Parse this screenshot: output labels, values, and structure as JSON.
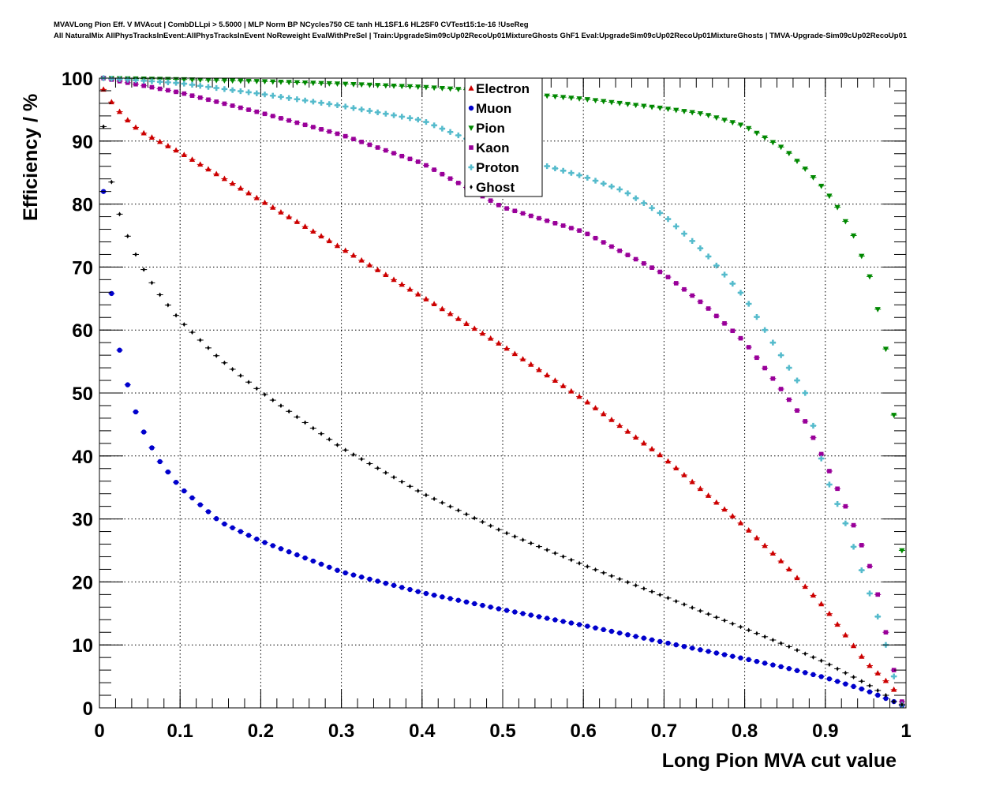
{
  "header": {
    "line1": "MVAVLong Pion Eff. V MVAcut | CombDLLpi > 5.5000 | MLP Norm BP NCycles750 CE tanh HL1SF1.6 HL2SF0 CVTest15:1e-16 !UseReg",
    "line2": "All NaturalMix AllPhysTracksInEvent:AllPhysTracksInEvent NoReweight EvalWithPreSel | Train:UpgradeSim09cUp02RecoUp01MixtureGhosts GhF1 Eval:UpgradeSim09cUp02RecoUp01MixtureGhosts | TMVA-Upgrade-Sim09cUp02RecoUp01"
  },
  "chart_data": {
    "type": "scatter",
    "title": "",
    "xlabel": "Long Pion MVA cut value",
    "ylabel": "Efficiency / %",
    "xlim": [
      0,
      1
    ],
    "ylim": [
      0,
      100
    ],
    "x_ticks": [
      "0",
      "0.1",
      "0.2",
      "0.3",
      "0.4",
      "0.5",
      "0.6",
      "0.7",
      "0.8",
      "0.9",
      "1"
    ],
    "y_ticks": [
      "0",
      "10",
      "20",
      "30",
      "40",
      "50",
      "60",
      "70",
      "80",
      "90",
      "100"
    ],
    "grid": true,
    "legend_position": "top-center",
    "x_sampling": {
      "start": 0.005,
      "step": 0.01,
      "count": 100
    },
    "series": [
      {
        "name": "Electron",
        "color": "#cc0000",
        "marker": "triangle-up",
        "knots": [
          [
            0.005,
            98.2
          ],
          [
            0.015,
            96.2
          ],
          [
            0.03,
            93.9
          ],
          [
            0.05,
            91.6
          ],
          [
            0.1,
            88.2
          ],
          [
            0.2,
            80.6
          ],
          [
            0.3,
            73
          ],
          [
            0.4,
            65.3
          ],
          [
            0.5,
            57.5
          ],
          [
            0.6,
            49
          ],
          [
            0.7,
            39.7
          ],
          [
            0.8,
            28.8
          ],
          [
            0.85,
            22.7
          ],
          [
            0.9,
            15.8
          ],
          [
            0.95,
            7.3
          ],
          [
            0.975,
            4.3
          ],
          [
            0.985,
            2.9
          ],
          [
            0.995,
            0.6
          ]
        ]
      },
      {
        "name": "Muon",
        "color": "#0000cc",
        "marker": "circle",
        "knots": [
          [
            0.005,
            82
          ],
          [
            0.015,
            65.8
          ],
          [
            0.025,
            56.8
          ],
          [
            0.035,
            51.3
          ],
          [
            0.045,
            47
          ],
          [
            0.055,
            43.8
          ],
          [
            0.065,
            41.3
          ],
          [
            0.075,
            39.1
          ],
          [
            0.1,
            35
          ],
          [
            0.15,
            29.5
          ],
          [
            0.2,
            26.5
          ],
          [
            0.3,
            21.6
          ],
          [
            0.4,
            18.3
          ],
          [
            0.5,
            15.6
          ],
          [
            0.6,
            13.1
          ],
          [
            0.7,
            10.4
          ],
          [
            0.8,
            7.8
          ],
          [
            0.85,
            6.4
          ],
          [
            0.9,
            4.8
          ],
          [
            0.95,
            2.8
          ],
          [
            0.975,
            1.5
          ],
          [
            0.985,
            1
          ],
          [
            0.995,
            0.4
          ]
        ]
      },
      {
        "name": "Pion",
        "color": "#008800",
        "marker": "triangle-down",
        "knots": [
          [
            0.005,
            100
          ],
          [
            0.1,
            99.8
          ],
          [
            0.2,
            99.5
          ],
          [
            0.3,
            99.1
          ],
          [
            0.4,
            98.6
          ],
          [
            0.5,
            97.8
          ],
          [
            0.6,
            96.7
          ],
          [
            0.7,
            95.2
          ],
          [
            0.75,
            94.3
          ],
          [
            0.8,
            92.4
          ],
          [
            0.85,
            88.7
          ],
          [
            0.875,
            85.6
          ],
          [
            0.9,
            82.2
          ],
          [
            0.915,
            79.5
          ],
          [
            0.935,
            75
          ],
          [
            0.955,
            68.5
          ],
          [
            0.965,
            63.3
          ],
          [
            0.975,
            57
          ],
          [
            0.985,
            46.5
          ],
          [
            0.995,
            25
          ]
        ]
      },
      {
        "name": "Kaon",
        "color": "#990099",
        "marker": "square",
        "knots": [
          [
            0.005,
            100
          ],
          [
            0.1,
            97.7
          ],
          [
            0.2,
            94.5
          ],
          [
            0.3,
            91
          ],
          [
            0.4,
            86.5
          ],
          [
            0.5,
            79.5
          ],
          [
            0.6,
            75.6
          ],
          [
            0.7,
            68.9
          ],
          [
            0.75,
            64
          ],
          [
            0.8,
            58.1
          ],
          [
            0.85,
            49.8
          ],
          [
            0.875,
            45.5
          ],
          [
            0.9,
            39
          ],
          [
            0.925,
            32
          ],
          [
            0.94,
            27.5
          ],
          [
            0.955,
            22.5
          ],
          [
            0.965,
            18
          ],
          [
            0.975,
            12
          ],
          [
            0.985,
            6
          ],
          [
            0.995,
            1
          ]
        ]
      },
      {
        "name": "Proton",
        "color": "#55bbcc",
        "marker": "cross",
        "knots": [
          [
            0.005,
            100
          ],
          [
            0.1,
            99.2
          ],
          [
            0.2,
            97.5
          ],
          [
            0.3,
            95.6
          ],
          [
            0.4,
            93.3
          ],
          [
            0.5,
            88
          ],
          [
            0.6,
            84.4
          ],
          [
            0.65,
            82.1
          ],
          [
            0.7,
            78.2
          ],
          [
            0.75,
            72.4
          ],
          [
            0.8,
            65.2
          ],
          [
            0.825,
            60
          ],
          [
            0.85,
            55
          ],
          [
            0.875,
            50
          ],
          [
            0.9,
            37
          ],
          [
            0.925,
            29.3
          ],
          [
            0.95,
            20
          ],
          [
            0.965,
            14.5
          ],
          [
            0.975,
            10
          ],
          [
            0.985,
            5
          ],
          [
            0.995,
            0.5
          ]
        ]
      },
      {
        "name": "Ghost",
        "color": "#000000",
        "marker": "diamond",
        "knots": [
          [
            0.005,
            92.3
          ],
          [
            0.015,
            83.5
          ],
          [
            0.025,
            78.4
          ],
          [
            0.035,
            74.9
          ],
          [
            0.045,
            72
          ],
          [
            0.055,
            69.6
          ],
          [
            0.065,
            67.5
          ],
          [
            0.075,
            65.6
          ],
          [
            0.1,
            61.5
          ],
          [
            0.15,
            55.3
          ],
          [
            0.2,
            50.2
          ],
          [
            0.3,
            41.3
          ],
          [
            0.4,
            34.1
          ],
          [
            0.5,
            28
          ],
          [
            0.6,
            22.7
          ],
          [
            0.7,
            17.7
          ],
          [
            0.8,
            12.6
          ],
          [
            0.85,
            10
          ],
          [
            0.9,
            7.2
          ],
          [
            0.95,
            3.9
          ],
          [
            0.975,
            2
          ],
          [
            0.985,
            1
          ],
          [
            0.995,
            0.5
          ]
        ]
      }
    ]
  }
}
